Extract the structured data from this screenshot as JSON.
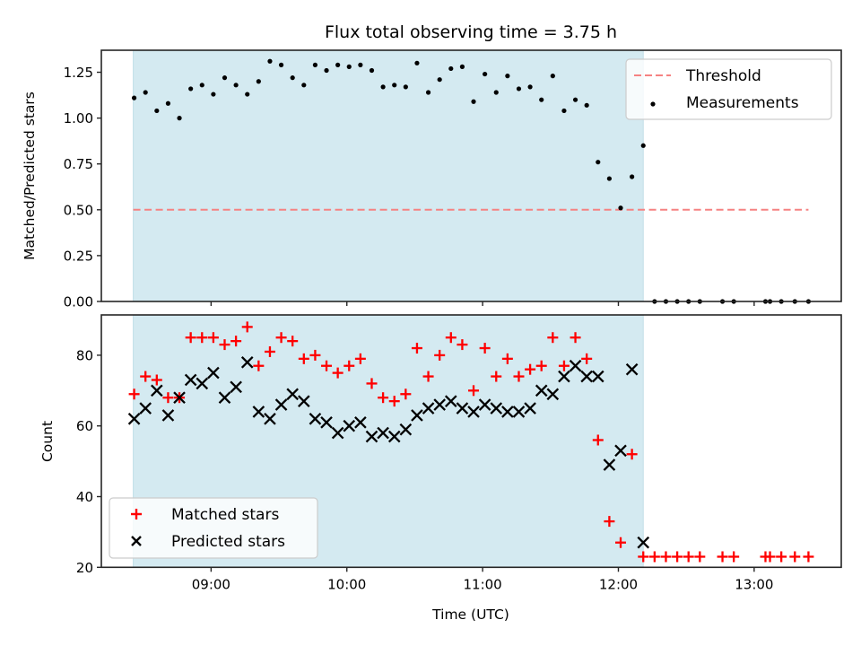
{
  "chart_data": [
    {
      "type": "scatter",
      "panel": "top",
      "title": "Flux total observing time = 3.75 h",
      "xlabel": "",
      "ylabel": "Matched/Predicted stars",
      "xlim": [
        "08:11",
        "13:38"
      ],
      "ylim": [
        0,
        1.37
      ],
      "yticks": [
        "0.00",
        "0.25",
        "0.50",
        "0.75",
        "1.00",
        "1.25"
      ],
      "ytick_values": [
        0,
        0.25,
        0.5,
        0.75,
        1.0,
        1.25
      ],
      "xticks": [
        "09:00",
        "10:00",
        "11:00",
        "12:00",
        "13:00"
      ],
      "shaded_interval": [
        "08:26",
        "12:11"
      ],
      "legend": {
        "placement": "upper-right",
        "entries": [
          "Threshold",
          "Measurements"
        ]
      },
      "threshold": {
        "name": "Threshold",
        "value": 0.5,
        "x_start": "08:26",
        "x_end": "13:24",
        "style": "dashed"
      },
      "series": [
        {
          "name": "Measurements",
          "x": [
            "08:26",
            "08:31",
            "08:36",
            "08:41",
            "08:46",
            "08:51",
            "08:56",
            "09:01",
            "09:06",
            "09:11",
            "09:16",
            "09:21",
            "09:26",
            "09:31",
            "09:36",
            "09:41",
            "09:46",
            "09:51",
            "09:56",
            "10:01",
            "10:06",
            "10:11",
            "10:16",
            "10:21",
            "10:26",
            "10:31",
            "10:36",
            "10:41",
            "10:46",
            "10:51",
            "10:56",
            "11:01",
            "11:06",
            "11:11",
            "11:16",
            "11:21",
            "11:26",
            "11:31",
            "11:36",
            "11:41",
            "11:46",
            "11:51",
            "11:56",
            "12:01",
            "12:06",
            "12:11",
            "12:16",
            "12:21",
            "12:26",
            "12:31",
            "12:36",
            "12:46",
            "12:51",
            "13:05",
            "13:07",
            "13:12",
            "13:18",
            "13:24"
          ],
          "y": [
            1.11,
            1.14,
            1.04,
            1.08,
            1.0,
            1.16,
            1.18,
            1.13,
            1.22,
            1.18,
            1.13,
            1.2,
            1.31,
            1.29,
            1.22,
            1.18,
            1.29,
            1.26,
            1.29,
            1.28,
            1.29,
            1.26,
            1.17,
            1.18,
            1.17,
            1.3,
            1.14,
            1.21,
            1.27,
            1.28,
            1.09,
            1.24,
            1.14,
            1.23,
            1.16,
            1.17,
            1.1,
            1.23,
            1.04,
            1.1,
            1.07,
            0.76,
            0.67,
            0.51,
            0.68,
            0.85,
            0,
            0,
            0,
            0,
            0,
            0,
            0,
            0,
            0,
            0,
            0,
            0
          ]
        }
      ]
    },
    {
      "type": "scatter",
      "panel": "bottom",
      "title": "",
      "xlabel": "Time (UTC)",
      "ylabel": "Count",
      "xlim": [
        "08:11",
        "13:38"
      ],
      "ylim": [
        20,
        91.4
      ],
      "yticks": [
        "20",
        "40",
        "60",
        "80"
      ],
      "ytick_values": [
        20,
        40,
        60,
        80
      ],
      "xticks": [
        "09:00",
        "10:00",
        "11:00",
        "12:00",
        "13:00"
      ],
      "shaded_interval": [
        "08:26",
        "12:11"
      ],
      "legend": {
        "placement": "lower-left",
        "entries": [
          "Matched stars",
          "Predicted stars"
        ]
      },
      "series": [
        {
          "name": "Matched stars",
          "marker": "+",
          "color": "#ff0000",
          "x": [
            "08:26",
            "08:31",
            "08:36",
            "08:41",
            "08:46",
            "08:51",
            "08:56",
            "09:01",
            "09:06",
            "09:11",
            "09:16",
            "09:21",
            "09:26",
            "09:31",
            "09:36",
            "09:41",
            "09:46",
            "09:51",
            "09:56",
            "10:01",
            "10:06",
            "10:11",
            "10:16",
            "10:21",
            "10:26",
            "10:31",
            "10:36",
            "10:41",
            "10:46",
            "10:51",
            "10:56",
            "11:01",
            "11:06",
            "11:11",
            "11:16",
            "11:21",
            "11:26",
            "11:31",
            "11:36",
            "11:41",
            "11:46",
            "11:51",
            "11:56",
            "12:01",
            "12:06",
            "12:11",
            "12:16",
            "12:21",
            "12:26",
            "12:31",
            "12:36",
            "12:46",
            "12:51",
            "13:05",
            "13:07",
            "13:12",
            "13:18",
            "13:24"
          ],
          "y": [
            69,
            74,
            73,
            68,
            68,
            85,
            85,
            85,
            83,
            84,
            88,
            77,
            81,
            85,
            84,
            79,
            80,
            77,
            75,
            77,
            79,
            72,
            68,
            67,
            69,
            82,
            74,
            80,
            85,
            83,
            70,
            82,
            74,
            79,
            74,
            76,
            77,
            85,
            77,
            85,
            79,
            56,
            33,
            27,
            52,
            23,
            23,
            23,
            23,
            23,
            23,
            23,
            23,
            23,
            23,
            23,
            23,
            23
          ]
        },
        {
          "name": "Predicted stars",
          "marker": "x",
          "color": "#000000",
          "x": [
            "08:26",
            "08:31",
            "08:36",
            "08:41",
            "08:46",
            "08:51",
            "08:56",
            "09:01",
            "09:06",
            "09:11",
            "09:16",
            "09:21",
            "09:26",
            "09:31",
            "09:36",
            "09:41",
            "09:46",
            "09:51",
            "09:56",
            "10:01",
            "10:06",
            "10:11",
            "10:16",
            "10:21",
            "10:26",
            "10:31",
            "10:36",
            "10:41",
            "10:46",
            "10:51",
            "10:56",
            "11:01",
            "11:06",
            "11:11",
            "11:16",
            "11:21",
            "11:26",
            "11:31",
            "11:36",
            "11:41",
            "11:46",
            "11:51",
            "11:56",
            "12:01",
            "12:06",
            "12:11"
          ],
          "y": [
            62,
            65,
            70,
            63,
            68,
            73,
            72,
            75,
            68,
            71,
            78,
            64,
            62,
            66,
            69,
            67,
            62,
            61,
            58,
            60,
            61,
            57,
            58,
            57,
            59,
            63,
            65,
            66,
            67,
            65,
            64,
            66,
            65,
            64,
            64,
            65,
            70,
            69,
            74,
            77,
            74,
            74,
            49,
            53,
            76,
            27
          ]
        }
      ]
    }
  ],
  "colors": {
    "shade": "#d4eaf1",
    "threshold": "#f58282",
    "measurements": "#000000",
    "matched": "#ff0000",
    "predicted": "#000000",
    "axes": "#262626"
  }
}
